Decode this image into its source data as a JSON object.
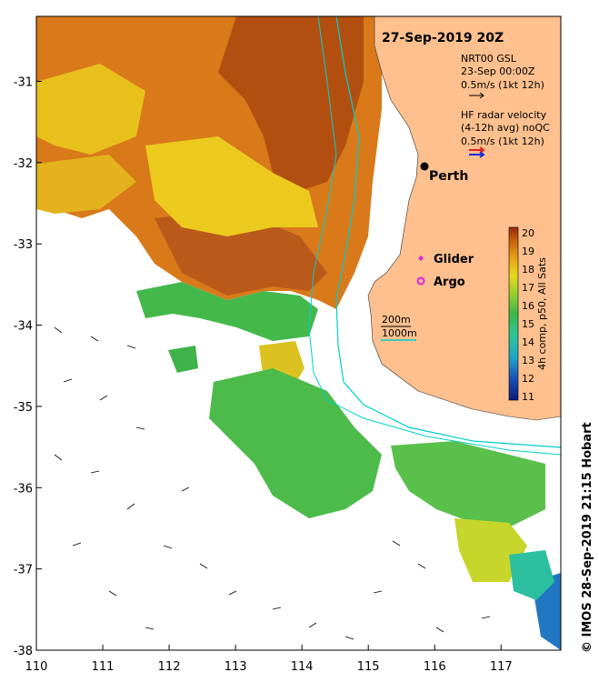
{
  "map": {
    "title": "27-Sep-2019 20Z",
    "credit": "© IMOS 28-Sep-2019 21:15 Hobart",
    "x_ticks": [
      "110",
      "111",
      "112",
      "113",
      "114",
      "115",
      "116",
      "117"
    ],
    "y_ticks": [
      "-31",
      "-32",
      "-33",
      "-34",
      "-35",
      "-36",
      "-37",
      "-38"
    ],
    "xlim": [
      110,
      117.9
    ],
    "ylim": [
      -38,
      -30.2
    ],
    "land_color": "#fdc08e",
    "contour_color": "#00cfcf"
  },
  "legend": {
    "gsl_title": "NRT00 GSL",
    "gsl_date": "23-Sep 00:00Z",
    "gsl_scale": "0.5m/s (1kt 12h)",
    "hf_title": "HF radar velocity",
    "hf_avg": "(4-12h avg) noQC",
    "hf_scale": "0.5m/s (1kt 12h)",
    "isobath_200": "200m",
    "isobath_1000": "1000m"
  },
  "places": {
    "perth": "Perth"
  },
  "markers": {
    "glider": "Glider",
    "argo": "Argo"
  },
  "colorbar": {
    "label": "4h comp, p50, All Sats",
    "ticks": [
      "20",
      "19",
      "18",
      "17",
      "16",
      "15",
      "14",
      "13",
      "12",
      "11"
    ],
    "min": 11,
    "max": 20
  }
}
